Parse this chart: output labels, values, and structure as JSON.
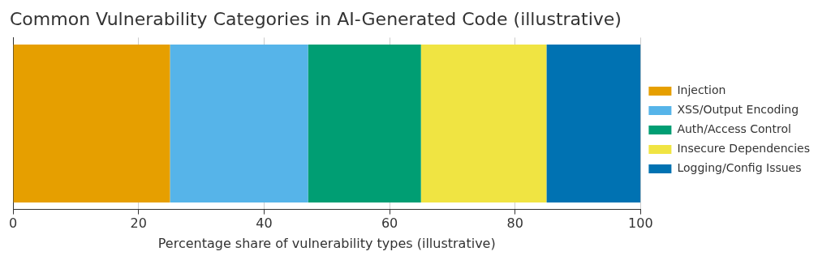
{
  "chart_data": {
    "type": "bar",
    "orientation": "horizontal",
    "stacked": true,
    "title": "Common Vulnerability Categories in AI-Generated Code (illustrative)",
    "xlabel": "Percentage share of vulnerability types (illustrative)",
    "categories": [
      null
    ],
    "series": [
      {
        "name": "Injection",
        "color": "#e69f00",
        "values": [
          25
        ]
      },
      {
        "name": "XSS/Output Encoding",
        "color": "#56b4e9",
        "values": [
          22
        ]
      },
      {
        "name": "Auth/Access Control",
        "color": "#009e73",
        "values": [
          18
        ]
      },
      {
        "name": "Insecure Dependencies",
        "color": "#f0e442",
        "values": [
          20
        ]
      },
      {
        "name": "Logging/Config Issues",
        "color": "#0072b2",
        "values": [
          15
        ]
      }
    ],
    "xlim": [
      0,
      100
    ],
    "xticks": [
      0,
      20,
      40,
      60,
      80,
      100
    ],
    "grid": "x",
    "legend": "right",
    "tick_labels": "x"
  }
}
